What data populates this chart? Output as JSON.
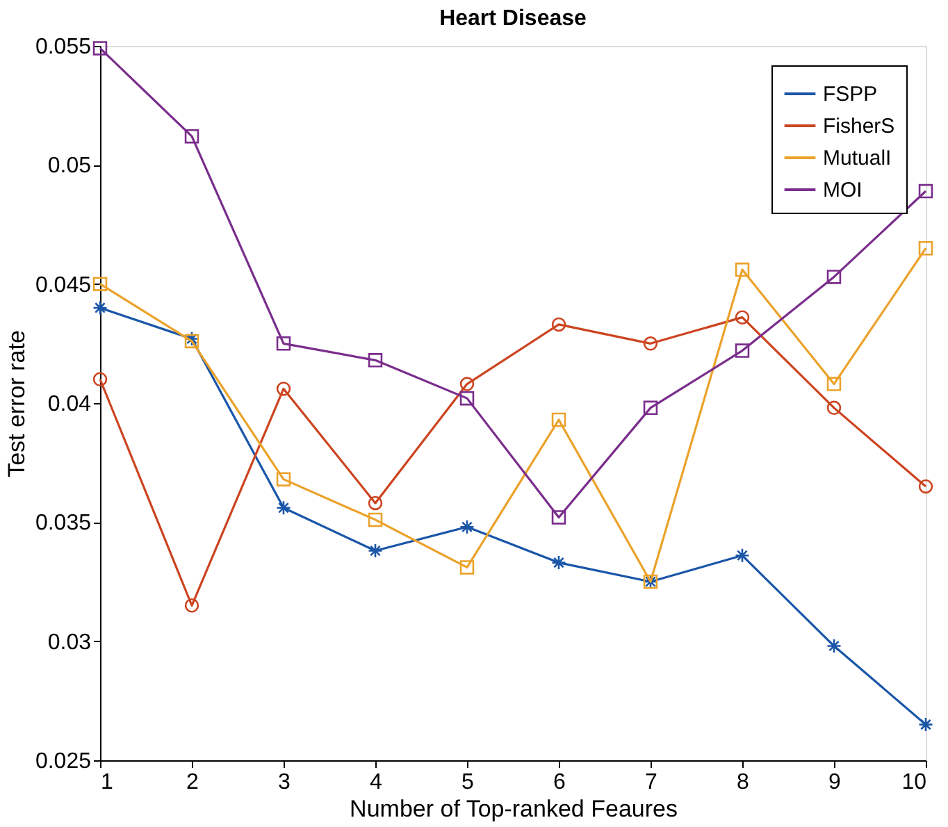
{
  "chart_data": {
    "type": "line",
    "title": "Heart Disease",
    "xlabel": "Number of Top-ranked Feaures",
    "ylabel": "Test  error rate",
    "x": [
      1,
      2,
      3,
      4,
      5,
      6,
      7,
      8,
      9,
      10
    ],
    "series": [
      {
        "name": "FSPP",
        "color": "#1a56a8",
        "marker": "cross",
        "values": [
          0.044,
          0.0427,
          0.0356,
          0.0338,
          0.0348,
          0.0333,
          0.0325,
          0.0336,
          0.0298,
          0.0265
        ]
      },
      {
        "name": "FisherS",
        "color": "#cc4420",
        "marker": "circle",
        "values": [
          0.041,
          0.0315,
          0.0406,
          0.0358,
          0.0408,
          0.0433,
          0.0425,
          0.0436,
          0.0398,
          0.0365
        ]
      },
      {
        "name": "MutualI",
        "color": "#eba22a",
        "marker": "square",
        "values": [
          0.045,
          0.0426,
          0.0368,
          0.0351,
          0.0331,
          0.0393,
          0.0325,
          0.0456,
          0.0408,
          0.0465
        ]
      },
      {
        "name": "MOI",
        "color": "#7a2d8c",
        "marker": "square",
        "values": [
          0.0549,
          0.0512,
          0.0425,
          0.0418,
          0.0402,
          0.0352,
          0.0398,
          0.0422,
          0.0453,
          0.0489
        ]
      }
    ],
    "xlim": [
      1,
      10
    ],
    "xticks": [
      1,
      2,
      3,
      4,
      5,
      6,
      7,
      8,
      9,
      10
    ],
    "ylim": [
      0.025,
      0.055
    ],
    "yticks": [
      0.025,
      0.03,
      0.035,
      0.04,
      0.045,
      0.05,
      0.055
    ],
    "grid": false,
    "legend": "top right",
    "line_style": "solid"
  }
}
